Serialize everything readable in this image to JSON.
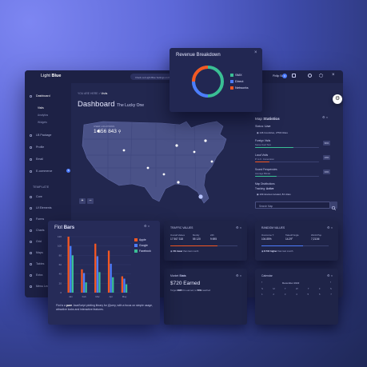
{
  "app": {
    "logo_light": "Light",
    "logo_bold": "Blue",
    "notice": "Check out Light Blue Settings on the right!",
    "user": "Philip Smith",
    "badge": "9"
  },
  "sidebar": {
    "items": [
      {
        "label": "Dashboard",
        "bold": true
      },
      {
        "label": "LB Package"
      },
      {
        "label": "Profile"
      },
      {
        "label": "Email",
        "badge": "9"
      },
      {
        "label": "E-commerce"
      }
    ],
    "sub": [
      "Visits",
      "Analytics",
      "Widgets"
    ],
    "template_head": "TEMPLATE",
    "template_items": [
      "Core",
      "UI Elements",
      "Forms",
      "Charts",
      "Grid",
      "Maps",
      "Tables",
      "Extra",
      "Menu Levels"
    ]
  },
  "breadcrumb": {
    "prefix": "YOU ARE HERE",
    "current": "Visits"
  },
  "page": {
    "title": "Dashboard",
    "subtitle": "The Lucky One"
  },
  "map": {
    "label": "USER LOCATIONS",
    "value": "1 656 843",
    "zoom_in": "+",
    "zoom_out": "–"
  },
  "stats": {
    "title_plain": "Map",
    "title_bold": "Statistics",
    "status_label": "Status:",
    "status_value": "Live",
    "countries": "146 Countries, 2759 Cities",
    "rows": [
      {
        "label": "Foreign Visits",
        "sub": "Some Cool Text",
        "pct": "60%",
        "value": 0.6,
        "color": "#3abf94"
      },
      {
        "label": "Local Visits",
        "sub": "P. to C. Conversion",
        "pct": "23%",
        "value": 0.23,
        "color": "#f45722"
      },
      {
        "label": "Sound Frequencies",
        "sub": "Average Bitrate",
        "pct": "34%",
        "value": 0.34,
        "color": "#3abf94"
      }
    ],
    "distribution": "Map Distributions",
    "tracking_label": "Tracking:",
    "tracking_value": "Active",
    "devices": "109 devices located, 84 cities",
    "search_placeholder": "Search Map"
  },
  "revenue": {
    "title": "Revenue Breakdown",
    "close": "×",
    "items": [
      {
        "label": "SMX",
        "color": "#3abf94"
      },
      {
        "label": "Direct",
        "color": "#4d7cfe"
      },
      {
        "label": "Networks",
        "color": "#f45722"
      }
    ]
  },
  "chart_data": {
    "type": "bar",
    "title": "Flot Bars",
    "categories": [
      "Jan",
      "Feb",
      "Mar",
      "Apr",
      "May"
    ],
    "series": [
      {
        "name": "Apple",
        "values": [
          120,
          50,
          105,
          90,
          35
        ]
      },
      {
        "name": "Google",
        "values": [
          100,
          42,
          78,
          62,
          30
        ]
      },
      {
        "name": "Facebook",
        "values": [
          80,
          22,
          44,
          33,
          18
        ]
      }
    ],
    "colors": [
      "#f45722",
      "#4d7cfe",
      "#3abf94"
    ],
    "ylim": [
      0,
      120
    ],
    "yticks": [
      0,
      20,
      40,
      60,
      80,
      100,
      120
    ]
  },
  "plot": {
    "title_plain": "Flot",
    "title_bold": "Bars",
    "desc_pre": "Flot is a",
    "desc_bold": "pure",
    "desc_post": "JavaScript plotting library for jQuery, with a focus on simple usage, attractive looks and interactive features."
  },
  "traffic": {
    "title": "TRAFFIC VALUES",
    "cols": [
      {
        "label": "Overall Values",
        "value": "17 567 318"
      },
      {
        "label": "Montly",
        "value": "55 120"
      },
      {
        "label": "24h",
        "value": "9 695"
      }
    ],
    "note_bold": "4% lower",
    "note": "than last month"
  },
  "random": {
    "title": "RANDOM VALUES",
    "cols": [
      {
        "label": "Overcome T.",
        "value": "104.85%"
      },
      {
        "label": "Takeoff Angle",
        "value": "14.29°"
      },
      {
        "label": "World Pop.",
        "value": "7,211M"
      }
    ],
    "note_bold": "8.734 higher",
    "note": "than last month"
  },
  "market": {
    "title_plain": "Market",
    "title_bold": "Stats",
    "value": "$720 Earned",
    "note_pre": "Target",
    "note_bold1": "3025",
    "note_mid": "hrs earned, to",
    "note_bold2": "50%",
    "note_post": "reached"
  },
  "calendar": {
    "title": "Calendar",
    "month": "December 2022",
    "days": [
      "S",
      "M",
      "T",
      "W",
      "T",
      "F",
      "S"
    ],
    "first_row": [
      "1",
      "2",
      "3",
      "4",
      "5",
      "6",
      "7"
    ]
  }
}
